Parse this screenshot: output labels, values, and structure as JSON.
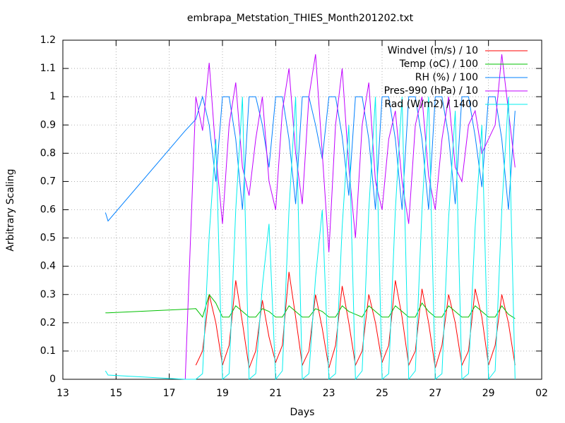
{
  "chart_data": {
    "type": "line",
    "title": "embrapa_Metstation_THIES_Month201202.txt",
    "x_label": "Days",
    "y_label": "Arbitrary Scaling",
    "xlim": [
      13,
      31
    ],
    "xticks": [
      13,
      15,
      17,
      19,
      21,
      23,
      25,
      27,
      29,
      {
        "value": 31,
        "label": "02"
      }
    ],
    "ylim": [
      0,
      1.2
    ],
    "yticks": [
      0,
      0.1,
      0.2,
      0.3,
      0.4,
      0.5,
      0.6,
      0.7,
      0.8,
      0.9,
      1,
      1.1,
      1.2
    ],
    "grid": true,
    "legend": "top right",
    "x": [
      14.6,
      14.7,
      17.6,
      18,
      18.25,
      18.5,
      18.75,
      19,
      19.25,
      19.5,
      19.75,
      20,
      20.25,
      20.5,
      20.75,
      21,
      21.25,
      21.5,
      21.75,
      22,
      22.25,
      22.5,
      22.75,
      23,
      23.25,
      23.5,
      23.75,
      24,
      24.25,
      24.5,
      24.75,
      25,
      25.25,
      25.5,
      25.75,
      26,
      26.25,
      26.5,
      26.75,
      27,
      27.25,
      27.5,
      27.75,
      28,
      28.25,
      28.5,
      28.75,
      29,
      29.25,
      29.5,
      29.75,
      30
    ],
    "series": [
      {
        "name": "Windvel (m/s) / 10",
        "color": "#ff0000",
        "values": [
          null,
          null,
          null,
          0.05,
          0.1,
          0.3,
          0.2,
          0.05,
          0.12,
          0.35,
          0.2,
          0.04,
          0.1,
          0.28,
          0.15,
          0.06,
          0.12,
          0.38,
          0.22,
          0.05,
          0.1,
          0.3,
          0.18,
          0.04,
          0.12,
          0.33,
          0.2,
          0.05,
          0.1,
          0.3,
          0.2,
          0.06,
          0.12,
          0.35,
          0.22,
          0.05,
          0.1,
          0.32,
          0.2,
          0.04,
          0.12,
          0.3,
          0.2,
          0.05,
          0.1,
          0.32,
          0.22,
          0.05,
          0.12,
          0.3,
          0.2,
          0.05
        ]
      },
      {
        "name": "Temp (oC) / 100",
        "color": "#00c000",
        "values": [
          0.235,
          0.235,
          0.248,
          0.25,
          0.22,
          0.3,
          0.27,
          0.22,
          0.22,
          0.26,
          0.24,
          0.22,
          0.22,
          0.25,
          0.24,
          0.22,
          0.22,
          0.26,
          0.24,
          0.22,
          0.22,
          0.25,
          0.24,
          0.22,
          0.22,
          0.26,
          0.24,
          0.23,
          0.22,
          0.26,
          0.24,
          0.22,
          0.22,
          0.26,
          0.24,
          0.22,
          0.22,
          0.27,
          0.24,
          0.22,
          0.22,
          0.26,
          0.24,
          0.22,
          0.22,
          0.26,
          0.24,
          0.22,
          0.22,
          0.26,
          0.23,
          0.215
        ]
      },
      {
        "name": "RH (%) / 100",
        "color": "#0080ff",
        "values": [
          0.59,
          0.56,
          0.88,
          0.92,
          1,
          0.9,
          0.7,
          1,
          1,
          0.85,
          0.6,
          1,
          1,
          0.9,
          0.75,
          1,
          1,
          0.85,
          0.62,
          1,
          1,
          0.9,
          0.78,
          1,
          1,
          0.86,
          0.65,
          1,
          1,
          0.85,
          0.6,
          1,
          1,
          0.85,
          0.6,
          1,
          1,
          0.85,
          0.6,
          1,
          1,
          0.86,
          0.62,
          1,
          1,
          0.86,
          0.68,
          1,
          1,
          0.85,
          0.6,
          0.95
        ]
      },
      {
        "name": "Pres-990 (hPa) / 10",
        "color": "#c000ff",
        "values": [
          null,
          null,
          0,
          1,
          0.88,
          1.12,
          0.8,
          0.55,
          0.9,
          1.05,
          0.75,
          0.65,
          0.85,
          1,
          0.7,
          0.6,
          0.95,
          1.1,
          0.8,
          0.62,
          1,
          1.15,
          0.8,
          0.45,
          0.9,
          1.1,
          0.75,
          0.5,
          0.9,
          1.05,
          0.7,
          0.6,
          0.85,
          0.95,
          0.7,
          0.55,
          0.9,
          1,
          0.72,
          0.6,
          0.85,
          1,
          0.75,
          0.7,
          0.9,
          0.95,
          0.8,
          0.85,
          0.9,
          1.15,
          0.95,
          0.75
        ]
      },
      {
        "name": "Rad (W/m2) / 1400",
        "color": "#00eeee",
        "values": [
          0.03,
          0.015,
          0,
          0,
          0.02,
          0.51,
          0.85,
          0,
          0.02,
          0.6,
          1,
          0,
          0.02,
          0.33,
          0.55,
          0,
          0.03,
          0.6,
          1,
          0,
          0.02,
          0.36,
          0.6,
          0,
          0.02,
          0.54,
          0.9,
          0,
          0.03,
          0.6,
          1,
          0,
          0.02,
          0.6,
          1,
          0,
          0.03,
          0.6,
          1,
          0,
          0.02,
          0.57,
          0.95,
          0,
          0.02,
          0.54,
          0.9,
          0,
          0.03,
          0.6,
          1,
          0
        ]
      }
    ]
  }
}
